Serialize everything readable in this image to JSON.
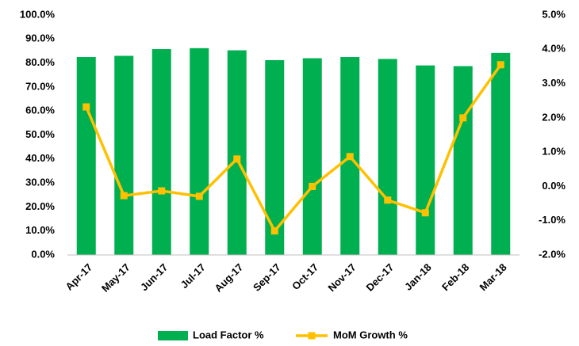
{
  "chart_data": {
    "type": "bar-line",
    "categories": [
      "Apr-17",
      "May-17",
      "Jun-17",
      "Jul-17",
      "Aug-17",
      "Sep-17",
      "Oct-17",
      "Nov-17",
      "Dec-17",
      "Jan-18",
      "Feb-18",
      "Mar-18"
    ],
    "series": [
      {
        "name": "Load Factor %",
        "type": "bar",
        "color": "#00b050",
        "axis": "y",
        "values": [
          82.5,
          83,
          85.8,
          86.2,
          85.3,
          81.2,
          82,
          82.5,
          81.7,
          79,
          78.7,
          84.2
        ]
      },
      {
        "name": "MoM Growth %",
        "type": "line",
        "color": "#ffc000",
        "axis": "y2",
        "values": [
          2.32,
          -0.27,
          -0.13,
          -0.29,
          0.8,
          -1.3,
          0.0,
          0.87,
          -0.4,
          -0.77,
          2.0,
          3.55
        ]
      }
    ],
    "ylim": [
      0,
      100
    ],
    "yticks": [
      {
        "value": 0,
        "label": "0.0%"
      },
      {
        "value": 10,
        "label": "10.0%"
      },
      {
        "value": 20,
        "label": "20.0%"
      },
      {
        "value": 30,
        "label": "30.0%"
      },
      {
        "value": 40,
        "label": "40.0%"
      },
      {
        "value": 50,
        "label": "50.0%"
      },
      {
        "value": 60,
        "label": "60.0%"
      },
      {
        "value": 70,
        "label": "70.0%"
      },
      {
        "value": 80,
        "label": "80.0%"
      },
      {
        "value": 90,
        "label": "90.0%"
      },
      {
        "value": 100,
        "label": "100.0%"
      }
    ],
    "y2lim": [
      -2,
      5
    ],
    "y2ticks": [
      {
        "value": -2,
        "label": "-2.0%"
      },
      {
        "value": -1,
        "label": "-1.0%"
      },
      {
        "value": 0,
        "label": "0.0%"
      },
      {
        "value": 1,
        "label": "1.0%"
      },
      {
        "value": 2,
        "label": "2.0%"
      },
      {
        "value": 3,
        "label": "3.0%"
      },
      {
        "value": 4,
        "label": "4.0%"
      },
      {
        "value": 5,
        "label": "5.0%"
      }
    ],
    "grid": false,
    "legend": "bottom"
  }
}
